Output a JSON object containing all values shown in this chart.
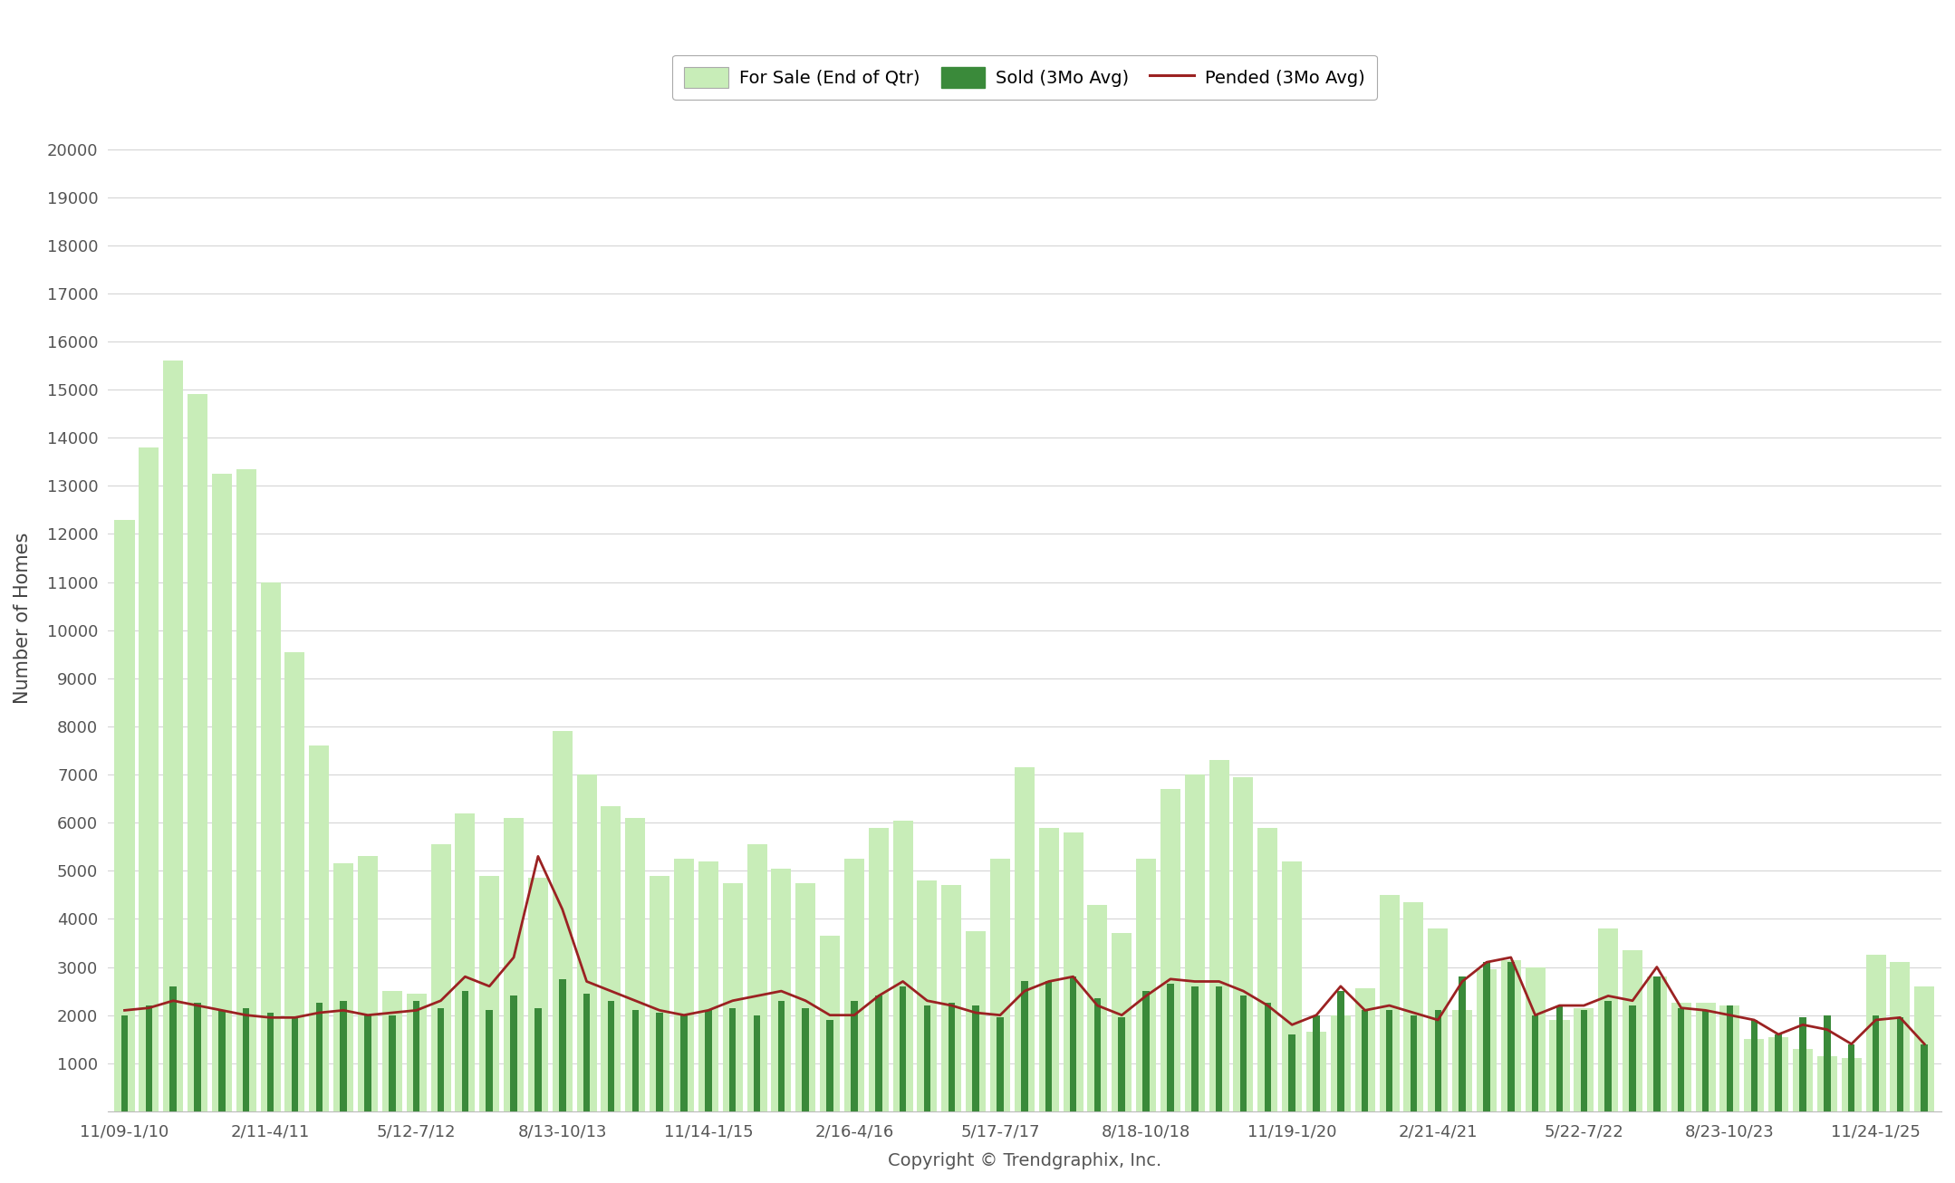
{
  "xlabel": "Copyright © Trendgraphix, Inc.",
  "ylabel": "Number of Homes",
  "x_labels": [
    "11/09-1/10",
    "2/11-4/11",
    "5/12-7/12",
    "8/13-10/13",
    "11/14-1/15",
    "2/16-4/16",
    "5/17-7/17",
    "8/18-10/18",
    "11/19-1/20",
    "2/21-4/21",
    "5/22-7/22",
    "8/23-10/23",
    "11/24-1/25"
  ],
  "for_sale": [
    12300,
    13800,
    15600,
    14900,
    13250,
    13350,
    11000,
    9550,
    7600,
    5150,
    5300,
    2500,
    2450,
    5550,
    6200,
    4900,
    6100,
    4850,
    7900,
    7000,
    6350,
    6100,
    4900,
    5250,
    5200,
    4750,
    5550,
    5050,
    4750,
    3650,
    5250,
    5900,
    6050,
    4800,
    4700,
    3750,
    5250,
    7150,
    5900,
    5800,
    4300,
    3700,
    5250,
    6700,
    7000,
    7300,
    6950,
    5900,
    5200,
    1650,
    2000,
    2550,
    4500,
    4350,
    3800,
    2100,
    2950,
    3150,
    3000,
    1900,
    2150,
    3800,
    3350,
    2800,
    2250,
    2250,
    2200,
    1500,
    1550,
    1300,
    1150,
    1100,
    3250,
    3100,
    2600
  ],
  "sold": [
    2000,
    2200,
    2600,
    2250,
    2100,
    2150,
    2050,
    1950,
    2250,
    2300,
    2000,
    2000,
    2300,
    2150,
    2500,
    2100,
    2400,
    2150,
    2750,
    2450,
    2300,
    2100,
    2050,
    2000,
    2100,
    2150,
    2000,
    2300,
    2150,
    1900,
    2300,
    2400,
    2600,
    2200,
    2250,
    2200,
    1950,
    2700,
    2700,
    2800,
    2350,
    1950,
    2500,
    2650,
    2600,
    2600,
    2400,
    2250,
    1600,
    2000,
    2500,
    2100,
    2100,
    2000,
    2100,
    2800,
    3100,
    3100,
    2000,
    2200,
    2100,
    2300,
    2200,
    2800,
    2150,
    2100,
    2200,
    1900,
    1600,
    1950,
    2000,
    1400,
    2000,
    1950,
    1400
  ],
  "pended": [
    2100,
    2150,
    2300,
    2200,
    2100,
    2000,
    1950,
    1950,
    2050,
    2100,
    2000,
    2050,
    2100,
    2300,
    2800,
    2600,
    3200,
    5300,
    4200,
    2700,
    2500,
    2300,
    2100,
    2000,
    2100,
    2300,
    2400,
    2500,
    2300,
    2000,
    2000,
    2400,
    2700,
    2300,
    2200,
    2050,
    2000,
    2500,
    2700,
    2800,
    2200,
    2000,
    2400,
    2750,
    2700,
    2700,
    2500,
    2200,
    1800,
    2000,
    2600,
    2100,
    2200,
    2050,
    1900,
    2700,
    3100,
    3200,
    2000,
    2200,
    2200,
    2400,
    2300,
    3000,
    2150,
    2100,
    2000,
    1900,
    1600,
    1800,
    1700,
    1400,
    1900,
    1950,
    1400
  ],
  "bar_for_sale_color": "#c8edb8",
  "bar_sold_color": "#3a8a3a",
  "line_pended_color": "#9b2222",
  "ylim": [
    0,
    20000
  ],
  "yticks": [
    0,
    1000,
    2000,
    3000,
    4000,
    5000,
    6000,
    7000,
    8000,
    9000,
    10000,
    11000,
    12000,
    13000,
    14000,
    15000,
    16000,
    17000,
    18000,
    19000,
    20000
  ],
  "background_color": "#ffffff",
  "grid_color": "#d5d5d5",
  "legend_for_sale": "For Sale (End of Qtr)",
  "legend_sold": "Sold (3Mo Avg)",
  "legend_pended": "Pended (3Mo Avg)"
}
